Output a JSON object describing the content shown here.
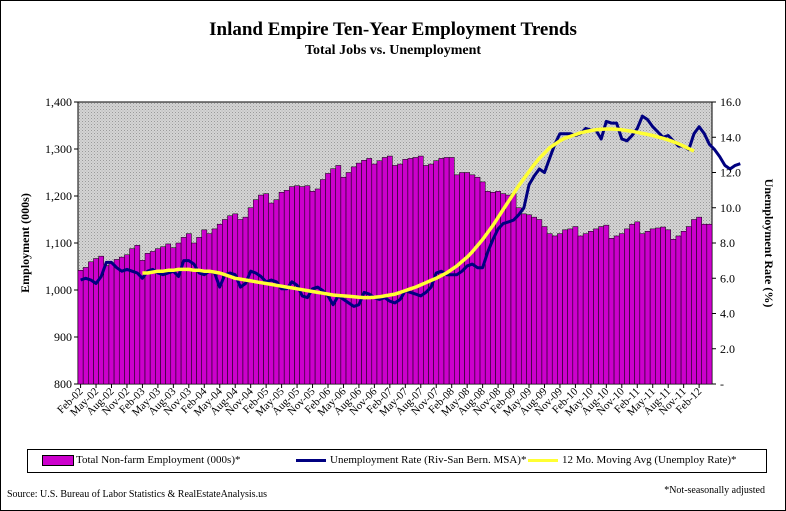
{
  "chart_data": {
    "type": "bar",
    "title": "Inland Empire Ten-Year Employment Trends",
    "subtitle": "Total Jobs vs. Unemployment",
    "ylabel": "Employment (000s)",
    "y2label": "Unemployment Rate (%)",
    "ylim": [
      800,
      1400
    ],
    "y2lim": [
      0,
      16
    ],
    "y_ticks": [
      "800",
      "900",
      "1,000",
      "1,100",
      "1,200",
      "1,300",
      "1,400"
    ],
    "y2_ticks": [
      "-",
      "2.0",
      "4.0",
      "6.0",
      "8.0",
      "10.0",
      "12.0",
      "14.0",
      "16.0"
    ],
    "x_tick_labels": [
      "Feb-02",
      "May-02",
      "Aug-02",
      "Nov-02",
      "Feb-03",
      "May-03",
      "Aug-03",
      "Nov-03",
      "Feb-04",
      "May-04",
      "Aug-04",
      "Nov-04",
      "Feb-05",
      "May-05",
      "Aug-05",
      "Nov-05",
      "Feb-06",
      "May-06",
      "Aug-06",
      "Nov-06",
      "Feb-07",
      "May-07",
      "Aug-07",
      "Nov-07",
      "Feb-08",
      "May-08",
      "Aug-08",
      "Nov-08",
      "Feb-09",
      "May-09",
      "Aug-09",
      "Nov-09",
      "Feb-10",
      "May-10",
      "Aug-10",
      "Nov-10",
      "Feb-11",
      "May-11",
      "Aug-11",
      "Nov-11",
      "Feb-12"
    ],
    "x_start": "Feb-02",
    "x_end": "Mar-12",
    "grid": false,
    "legend_position": "bottom",
    "series": [
      {
        "name": "Total Non-farm Employment (000s)*",
        "type": "bar",
        "axis": "left",
        "color": "#cc00cc",
        "values": [
          1042,
          1048,
          1060,
          1067,
          1072,
          1052,
          1058,
          1065,
          1070,
          1075,
          1088,
          1095,
          1063,
          1078,
          1082,
          1088,
          1092,
          1098,
          1090,
          1100,
          1112,
          1120,
          1100,
          1112,
          1128,
          1120,
          1130,
          1140,
          1150,
          1158,
          1162,
          1150,
          1155,
          1175,
          1192,
          1202,
          1205,
          1185,
          1192,
          1208,
          1212,
          1220,
          1222,
          1220,
          1222,
          1210,
          1215,
          1235,
          1248,
          1258,
          1265,
          1240,
          1250,
          1262,
          1270,
          1276,
          1280,
          1268,
          1275,
          1282,
          1285,
          1265,
          1268,
          1278,
          1280,
          1282,
          1285,
          1265,
          1268,
          1275,
          1280,
          1282,
          1282,
          1245,
          1250,
          1250,
          1245,
          1240,
          1230,
          1210,
          1208,
          1210,
          1205,
          1202,
          1205,
          1175,
          1162,
          1160,
          1155,
          1150,
          1135,
          1120,
          1115,
          1120,
          1128,
          1130,
          1135,
          1115,
          1120,
          1125,
          1130,
          1135,
          1138,
          1110,
          1115,
          1120,
          1130,
          1140,
          1145,
          1120,
          1125,
          1130,
          1132,
          1134,
          1128,
          1108,
          1115,
          1125,
          1135,
          1150,
          1155,
          1140,
          1140
        ]
      },
      {
        "name": "Unemployment Rate (Riv-San Bern. MSA)*",
        "type": "line",
        "axis": "right",
        "color": "#000080",
        "values": [
          5.9,
          6.0,
          5.9,
          5.7,
          6.1,
          6.9,
          6.9,
          6.6,
          6.4,
          6.5,
          6.4,
          6.3,
          6.0,
          6.4,
          6.5,
          6.3,
          6.2,
          6.3,
          6.4,
          6.1,
          7.0,
          7.0,
          6.8,
          6.3,
          6.2,
          6.4,
          6.3,
          5.5,
          6.2,
          6.3,
          6.2,
          5.5,
          5.7,
          6.4,
          6.3,
          6.1,
          5.8,
          5.9,
          5.8,
          5.4,
          5.4,
          5.8,
          5.6,
          5.0,
          4.9,
          5.4,
          5.5,
          5.3,
          5.0,
          4.5,
          5.0,
          4.8,
          4.6,
          4.4,
          4.5,
          5.2,
          5.1,
          4.9,
          4.8,
          4.9,
          4.7,
          4.6,
          4.8,
          5.3,
          5.2,
          5.1,
          5.0,
          5.2,
          5.5,
          6.3,
          6.4,
          6.2,
          6.2,
          6.2,
          6.4,
          6.7,
          6.8,
          6.6,
          6.6,
          7.5,
          8.2,
          8.8,
          9.1,
          9.2,
          9.3,
          9.6,
          10.0,
          11.3,
          11.8,
          12.2,
          12.0,
          12.8,
          13.6,
          14.2,
          14.2,
          14.2,
          14.1,
          14.2,
          14.5,
          14.4,
          14.4,
          13.9,
          14.9,
          14.8,
          14.8,
          13.9,
          13.8,
          14.1,
          14.5,
          15.2,
          15.0,
          14.6,
          14.3,
          14.0,
          14.1,
          13.8,
          13.5,
          13.5,
          13.3,
          14.2,
          14.6,
          14.2,
          13.6,
          13.3,
          12.9,
          12.4,
          12.2,
          12.4,
          12.5
        ]
      },
      {
        "name": "12 Mo. Moving Avg (Unemploy Rate)*",
        "type": "line",
        "axis": "right",
        "color": "#ffff33",
        "start_index": 12,
        "values": [
          6.3,
          6.3,
          6.35,
          6.4,
          6.4,
          6.45,
          6.45,
          6.5,
          6.5,
          6.5,
          6.45,
          6.45,
          6.4,
          6.4,
          6.35,
          6.3,
          6.2,
          6.1,
          6.0,
          5.95,
          5.9,
          5.85,
          5.8,
          5.75,
          5.7,
          5.65,
          5.6,
          5.55,
          5.5,
          5.45,
          5.4,
          5.35,
          5.3,
          5.25,
          5.2,
          5.15,
          5.1,
          5.05,
          5.02,
          5.0,
          4.98,
          4.95,
          4.92,
          4.9,
          4.9,
          4.92,
          4.95,
          5.0,
          5.05,
          5.1,
          5.2,
          5.3,
          5.4,
          5.5,
          5.62,
          5.75,
          5.88,
          6.0,
          6.15,
          6.3,
          6.5,
          6.7,
          6.95,
          7.2,
          7.5,
          7.85,
          8.2,
          8.6,
          9.0,
          9.45,
          9.9,
          10.35,
          10.8,
          11.25,
          11.65,
          12.05,
          12.45,
          12.8,
          13.1,
          13.4,
          13.6,
          13.8,
          13.95,
          14.05,
          14.15,
          14.25,
          14.32,
          14.38,
          14.42,
          14.45,
          14.47,
          14.47,
          14.45,
          14.42,
          14.38,
          14.33,
          14.28,
          14.22,
          14.16,
          14.1,
          14.02,
          13.94,
          13.85,
          13.75,
          13.63,
          13.5,
          13.35,
          13.22
        ]
      }
    ]
  },
  "legend": {
    "item1": "Total Non-farm Employment (000s)*",
    "item2": "Unemployment Rate (Riv-San Bern. MSA)*",
    "item3": "12 Mo. Moving Avg (Unemploy Rate)*"
  },
  "footer": {
    "source": "Source: U.S. Bureau of Labor Statistics & RealEstateAnalysis.us",
    "note": "*Not-seasonally adjusted"
  }
}
